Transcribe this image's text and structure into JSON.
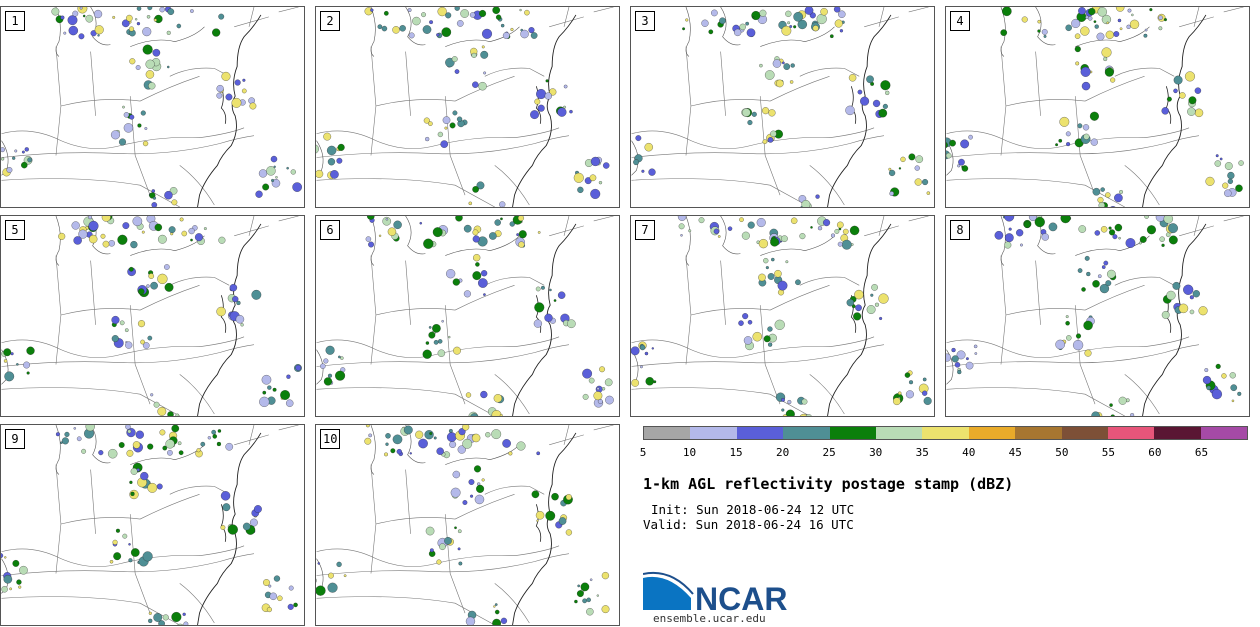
{
  "panels": [
    {
      "label": "1"
    },
    {
      "label": "2"
    },
    {
      "label": "3"
    },
    {
      "label": "4"
    },
    {
      "label": "5"
    },
    {
      "label": "6"
    },
    {
      "label": "7"
    },
    {
      "label": "8"
    },
    {
      "label": "9"
    },
    {
      "label": "10"
    }
  ],
  "legend": {
    "ticks": [
      "5",
      "10",
      "15",
      "20",
      "25",
      "30",
      "35",
      "40",
      "45",
      "50",
      "55",
      "60",
      "65"
    ],
    "colors": [
      "#a6a6a6",
      "#b4b9ea",
      "#5a5fd9",
      "#4f8f95",
      "#0b7f0b",
      "#b9dcb6",
      "#ece26e",
      "#e9ab2a",
      "#a77630",
      "#7d5037",
      "#e7557a",
      "#5a1633",
      "#a54aa6"
    ]
  },
  "title": "1-km AGL reflectivity postage stamp (dBZ)",
  "init": "Init: Sun 2018-06-24 12 UTC",
  "valid": "Valid: Sun 2018-06-24 16 UTC",
  "logo": {
    "text": "NCAR",
    "url": "ensemble.ucar.edu",
    "color": "#1d4f8c"
  }
}
